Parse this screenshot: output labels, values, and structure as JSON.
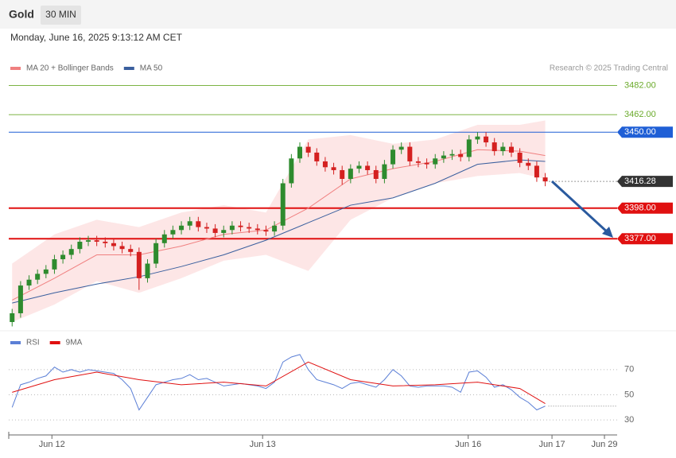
{
  "chart_data": {
    "type": "candlestick",
    "title": "Gold",
    "interval": "30 MIN",
    "subtitle": "Monday, June 16, 2025 9:13:12 AM CET",
    "credit": "Research © 2025 Trading Central",
    "legend": [
      {
        "name": "MA 20 + Bollinger Bands",
        "color": "#f08080"
      },
      {
        "name": "MA 50",
        "color": "#3a5f9e"
      }
    ],
    "xlim": [
      -0.4,
      71.5
    ],
    "xticks": [
      {
        "value": 4.7,
        "label": "Jun 12"
      },
      {
        "value": 29.6,
        "label": "Jun 13"
      },
      {
        "value": 53.9,
        "label": "Jun 16"
      },
      {
        "value": 63.8,
        "label": "Jun 17"
      },
      {
        "value": 70,
        "label": "Jun 29"
      }
    ],
    "ylim": [
      3320,
      3510
    ],
    "up_color": "#2e8b2e",
    "down_color": "#d42020",
    "open": [
      3320,
      3326,
      3345,
      3349,
      3353,
      3356,
      3363,
      3366,
      3370,
      3375,
      3376,
      3375,
      3374,
      3372,
      3370,
      3368,
      3350,
      3360,
      3374,
      3380,
      3383,
      3386,
      3389,
      3385,
      3384,
      3381,
      3383,
      3386,
      3385,
      3384,
      3383,
      3382,
      3386,
      3415,
      3432,
      3440,
      3436,
      3430,
      3426,
      3424,
      3418,
      3425,
      3427,
      3424,
      3418,
      3428,
      3438,
      3440,
      3430,
      3429,
      3428,
      3432,
      3434,
      3435,
      3433,
      3445,
      3447,
      3443,
      3437,
      3440,
      3436,
      3429,
      3427,
      3419
    ],
    "high": [
      3329,
      3348,
      3352,
      3356,
      3359,
      3366,
      3369,
      3373,
      3378,
      3379,
      3379,
      3378,
      3377,
      3375,
      3373,
      3371,
      3363,
      3377,
      3383,
      3386,
      3389,
      3392,
      3392,
      3388,
      3387,
      3386,
      3389,
      3389,
      3388,
      3387,
      3386,
      3389,
      3418,
      3435,
      3443,
      3443,
      3439,
      3433,
      3429,
      3427,
      3428,
      3430,
      3430,
      3427,
      3431,
      3441,
      3443,
      3443,
      3433,
      3432,
      3435,
      3437,
      3438,
      3438,
      3448,
      3450,
      3450,
      3446,
      3443,
      3443,
      3439,
      3432,
      3430,
      3422
    ],
    "low": [
      3317,
      3323,
      3342,
      3346,
      3350,
      3353,
      3360,
      3363,
      3367,
      3372,
      3372,
      3371,
      3369,
      3367,
      3365,
      3342,
      3347,
      3357,
      3371,
      3377,
      3380,
      3383,
      3382,
      3381,
      3378,
      3378,
      3380,
      3382,
      3381,
      3380,
      3379,
      3379,
      3383,
      3412,
      3429,
      3433,
      3427,
      3423,
      3421,
      3414,
      3415,
      3422,
      3421,
      3415,
      3415,
      3425,
      3435,
      3427,
      3426,
      3425,
      3425,
      3429,
      3431,
      3430,
      3430,
      3442,
      3440,
      3434,
      3434,
      3433,
      3426,
      3424,
      3416,
      3413
    ],
    "close": [
      3326,
      3345,
      3349,
      3353,
      3356,
      3363,
      3366,
      3370,
      3375,
      3376,
      3375,
      3374,
      3372,
      3370,
      3368,
      3350,
      3360,
      3374,
      3380,
      3383,
      3386,
      3389,
      3385,
      3384,
      3381,
      3383,
      3386,
      3385,
      3384,
      3383,
      3382,
      3386,
      3415,
      3432,
      3440,
      3436,
      3430,
      3426,
      3424,
      3418,
      3425,
      3427,
      3424,
      3418,
      3428,
      3438,
      3440,
      3430,
      3429,
      3428,
      3432,
      3434,
      3435,
      3433,
      3445,
      3447,
      3443,
      3437,
      3440,
      3436,
      3429,
      3427,
      3419,
      3416.28
    ],
    "ma_x": [
      0,
      5,
      10,
      15,
      20,
      25,
      30,
      35,
      40,
      45,
      50,
      55,
      60,
      63
    ],
    "ma20": [
      3335,
      3350,
      3366,
      3366,
      3372,
      3380,
      3383,
      3398,
      3418,
      3425,
      3430,
      3438,
      3437,
      3434
    ],
    "ma50": [
      3333,
      3340,
      3346,
      3351,
      3358,
      3366,
      3376,
      3388,
      3400,
      3405,
      3415,
      3428,
      3431,
      3430
    ],
    "bb_upper": [
      3360,
      3380,
      3390,
      3385,
      3395,
      3400,
      3395,
      3445,
      3448,
      3442,
      3445,
      3455,
      3455,
      3458
    ],
    "bb_lower": [
      3320,
      3332,
      3348,
      3340,
      3350,
      3362,
      3366,
      3355,
      3390,
      3405,
      3415,
      3420,
      3422,
      3418
    ],
    "levels": [
      {
        "value": 3482,
        "label": "3482.00",
        "color": "#6aaa2a",
        "style": "text",
        "line": "solid",
        "width": 0.8
      },
      {
        "value": 3462,
        "label": "3462.00",
        "color": "#6aaa2a",
        "style": "text",
        "line": "solid",
        "width": 0.8
      },
      {
        "value": 3450,
        "label": "3450.00",
        "color": "#1f5fd6",
        "style": "box",
        "line": "solid",
        "width": 1
      },
      {
        "value": 3416.28,
        "label": "3416.28",
        "color": "#333333",
        "style": "box",
        "line": "dotted",
        "width": 1
      },
      {
        "value": 3398,
        "label": "3398.00",
        "color": "#e01010",
        "style": "box",
        "line": "solid",
        "width": 2
      },
      {
        "value": 3377,
        "label": "3377.00",
        "color": "#e01010",
        "style": "box",
        "line": "solid",
        "width": 2
      }
    ],
    "rsi_legend": [
      {
        "name": "RSI",
        "color": "#5b7fd6"
      },
      {
        "name": "9MA",
        "color": "#e01010"
      }
    ],
    "rsi_ylim": [
      20,
      80
    ],
    "rsi_yticks": [
      70,
      50,
      30
    ],
    "rsi": [
      40,
      58,
      60,
      63,
      65,
      72,
      68,
      70,
      68,
      70,
      69,
      68,
      67,
      62,
      55,
      38,
      48,
      58,
      60,
      62,
      63,
      66,
      62,
      63,
      60,
      57,
      58,
      59,
      58,
      57,
      55,
      60,
      76,
      80,
      82,
      70,
      62,
      60,
      58,
      55,
      59,
      60,
      58,
      56,
      62,
      70,
      65,
      57,
      56,
      57,
      57,
      57,
      56,
      52,
      68,
      69,
      64,
      56,
      58,
      54,
      48,
      44,
      38,
      41
    ],
    "rsi_ma": [
      52,
      62,
      68,
      62,
      58,
      60,
      57,
      76,
      62,
      57,
      58,
      60,
      55,
      43
    ]
  }
}
